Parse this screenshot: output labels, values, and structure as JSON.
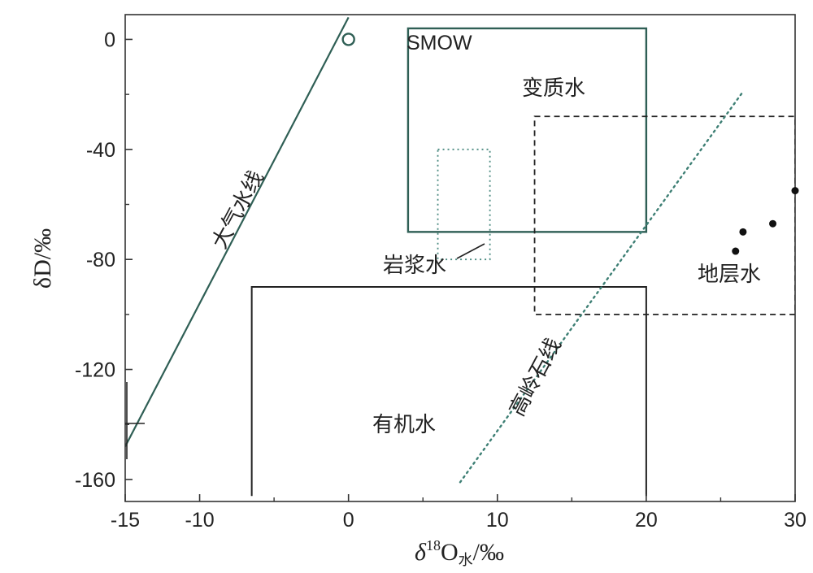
{
  "chart_data": {
    "type": "scatter",
    "xlim": [
      -15,
      30
    ],
    "ylim": [
      -168,
      9
    ],
    "x_ticks": [
      -15,
      -10,
      0,
      10,
      20,
      30
    ],
    "y_ticks": [
      0,
      -40,
      -80,
      -120,
      -160
    ],
    "xlabel": {
      "delta": "δ",
      "sup": "18",
      "base": "O",
      "sub": "水",
      "unit": "/‰"
    },
    "ylabel": "δD/‰",
    "grid": false,
    "smow": {
      "x": 0,
      "y": 0,
      "label": "SMOW"
    },
    "lines": [
      {
        "id": "meteoric",
        "label": "大气水线",
        "style": "solid",
        "x": [
          -15,
          0
        ],
        "y": [
          -148,
          8
        ]
      },
      {
        "id": "kaolinite",
        "label": "高岭石线",
        "style": "dotted",
        "x": [
          7.5,
          26.5
        ],
        "y": [
          -161,
          -19
        ]
      }
    ],
    "regions": [
      {
        "id": "metamorphic",
        "label": "变质水",
        "style": "solid",
        "x": [
          4,
          20
        ],
        "y": [
          -70,
          4
        ]
      },
      {
        "id": "magmatic",
        "label": "岩浆水",
        "style": "dotted",
        "x": [
          6,
          9.5
        ],
        "y": [
          -80,
          -40
        ]
      },
      {
        "id": "formation",
        "label": "地层水",
        "style": "dashed",
        "x": [
          12.5,
          30
        ],
        "y": [
          -100,
          -28
        ]
      },
      {
        "id": "organic",
        "label": "有机水",
        "style": "solid-open",
        "x": [
          -6.5,
          20
        ],
        "y": [
          -166,
          -90
        ]
      }
    ],
    "points": [
      {
        "x": 26,
        "y": -77
      },
      {
        "x": 26.5,
        "y": -70
      },
      {
        "x": 28.5,
        "y": -67
      },
      {
        "x": 30,
        "y": -55
      }
    ]
  }
}
